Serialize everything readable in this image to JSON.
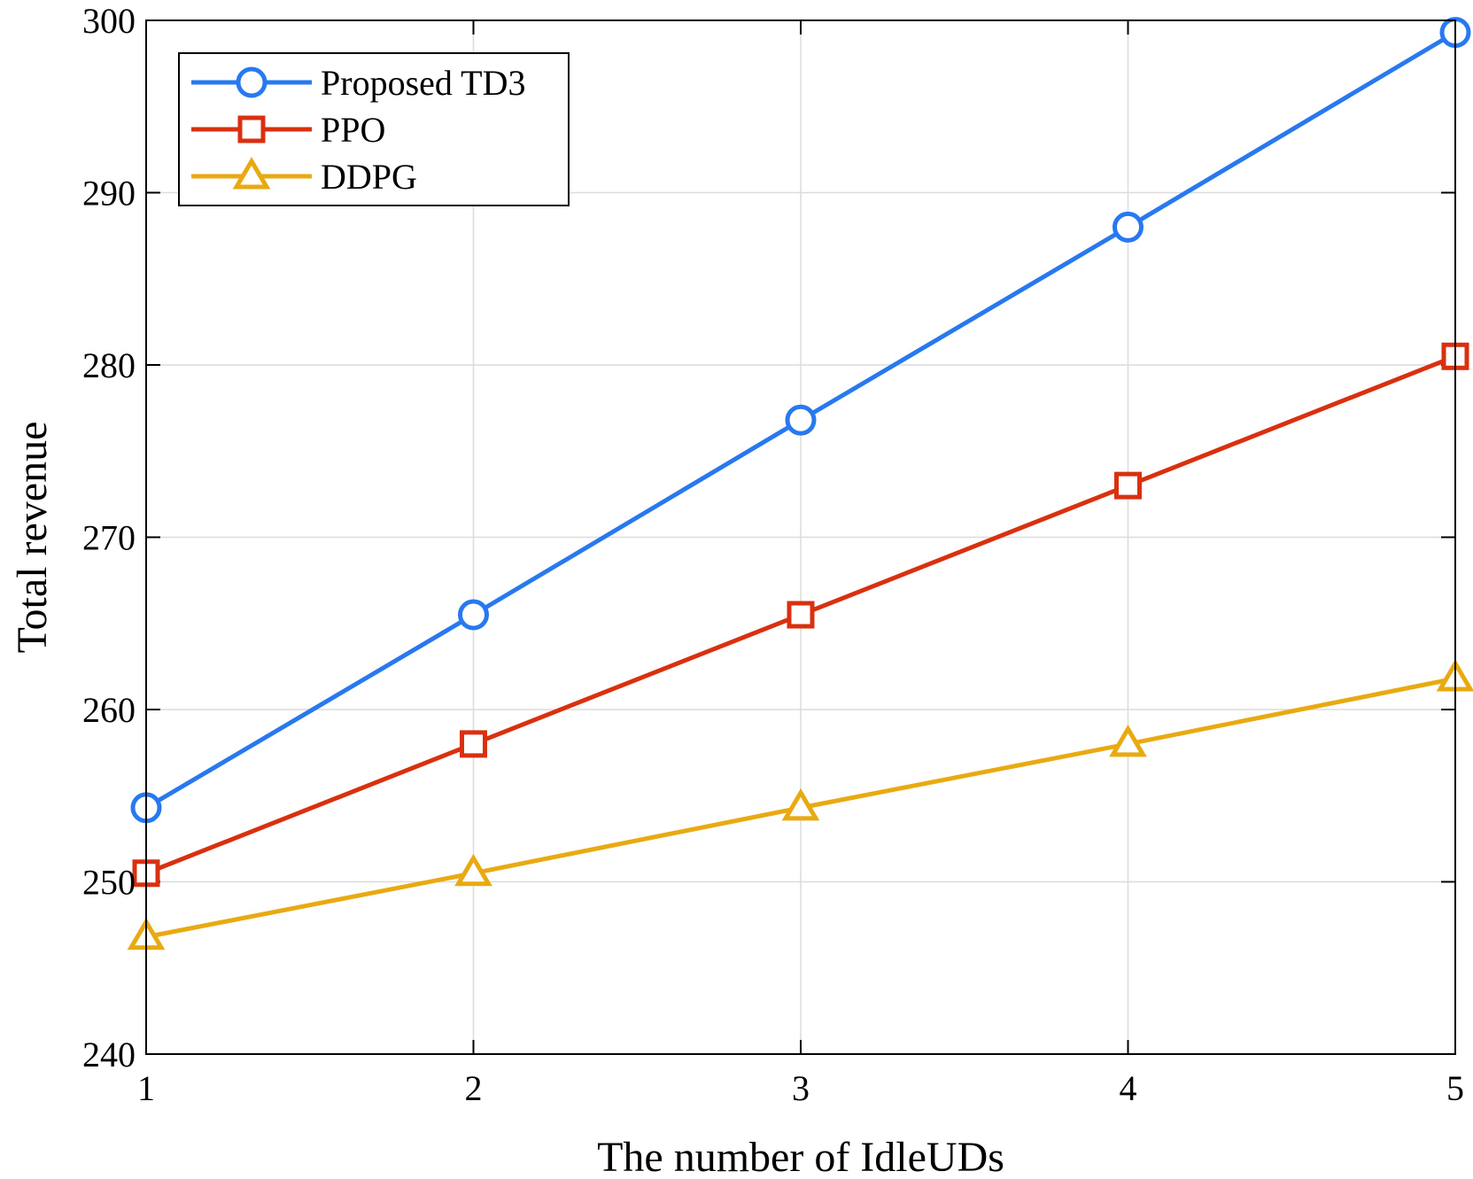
{
  "chart_data": {
    "type": "line",
    "title": "",
    "xlabel": "The number of IdleUDs",
    "ylabel": "Total revenue",
    "x": [
      1,
      2,
      3,
      4,
      5
    ],
    "xlim": [
      1,
      5
    ],
    "ylim": [
      240,
      300
    ],
    "xticks": [
      1,
      2,
      3,
      4,
      5
    ],
    "yticks": [
      240,
      250,
      260,
      270,
      280,
      290,
      300
    ],
    "grid": true,
    "legend_position": "top-left",
    "series": [
      {
        "name": "Proposed TD3",
        "marker": "circle",
        "color": "#2878f0",
        "values": [
          254.3,
          265.5,
          276.8,
          288.0,
          299.3
        ]
      },
      {
        "name": "PPO",
        "marker": "square",
        "color": "#d93010",
        "values": [
          250.5,
          258.0,
          265.5,
          273.0,
          280.5
        ]
      },
      {
        "name": "DDPG",
        "marker": "triangle",
        "color": "#e8aa10",
        "values": [
          246.8,
          250.5,
          254.3,
          258.0,
          261.8
        ]
      }
    ]
  }
}
